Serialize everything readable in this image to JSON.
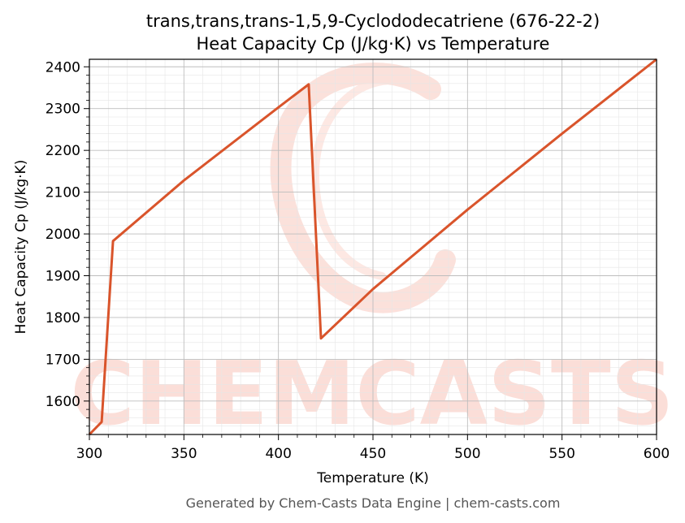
{
  "watermark": {
    "text": "CHEMCASTS",
    "color": "#f9c9bf"
  },
  "footer": "Generated by Chem-Casts Data Engine | chem-casts.com",
  "chart_data": {
    "type": "line",
    "title_line1": "trans,trans,trans-1,5,9-Cyclododecatriene (676-22-2)",
    "title_line2": "Heat Capacity Cp (J/kg·K) vs Temperature",
    "xlabel": "Temperature (K)",
    "ylabel": "Heat Capacity Cp (J/kg·K)",
    "xlim": [
      300,
      600
    ],
    "ylim": [
      1520,
      2418
    ],
    "xticks": [
      300,
      350,
      400,
      450,
      500,
      550,
      600
    ],
    "yticks": [
      1600,
      1700,
      1800,
      1900,
      2000,
      2100,
      2200,
      2300,
      2400
    ],
    "grid": true,
    "line_color": "#d9542b",
    "series": [
      {
        "x": [
          300,
          306.5,
          312.5,
          350,
          400,
          416,
          422.5,
          450,
          500,
          550,
          600
        ],
        "y": [
          1520,
          1550,
          1983,
          2128,
          2303,
          2358,
          1750,
          1868,
          2058,
          2240,
          2418
        ]
      }
    ]
  }
}
